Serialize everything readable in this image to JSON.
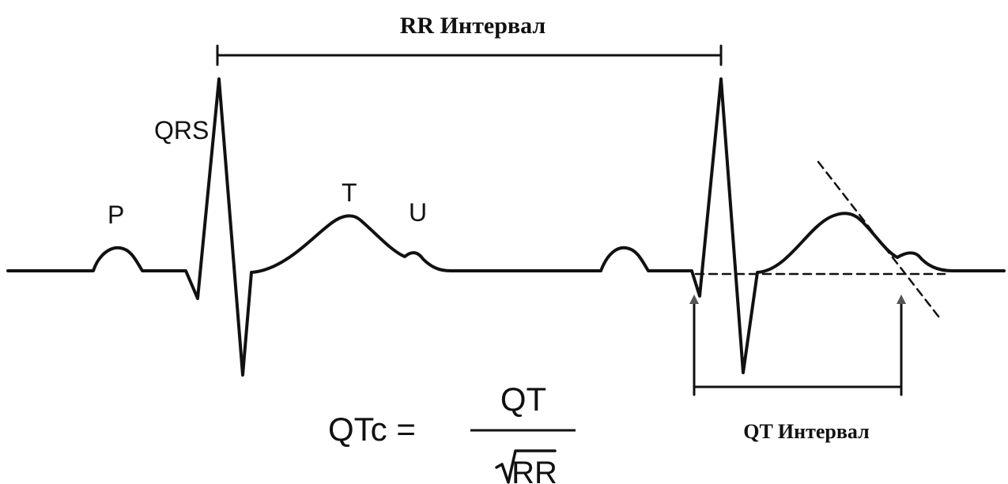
{
  "rr_interval": {
    "label": "RR Интервал"
  },
  "waves": {
    "qrs": "QRS",
    "p": "P",
    "t": "T",
    "u": "U"
  },
  "qt_interval": {
    "label": "QT Интервал"
  },
  "formula": {
    "lhs": "QTc =",
    "numerator": "QT",
    "denominator": "RR"
  }
}
